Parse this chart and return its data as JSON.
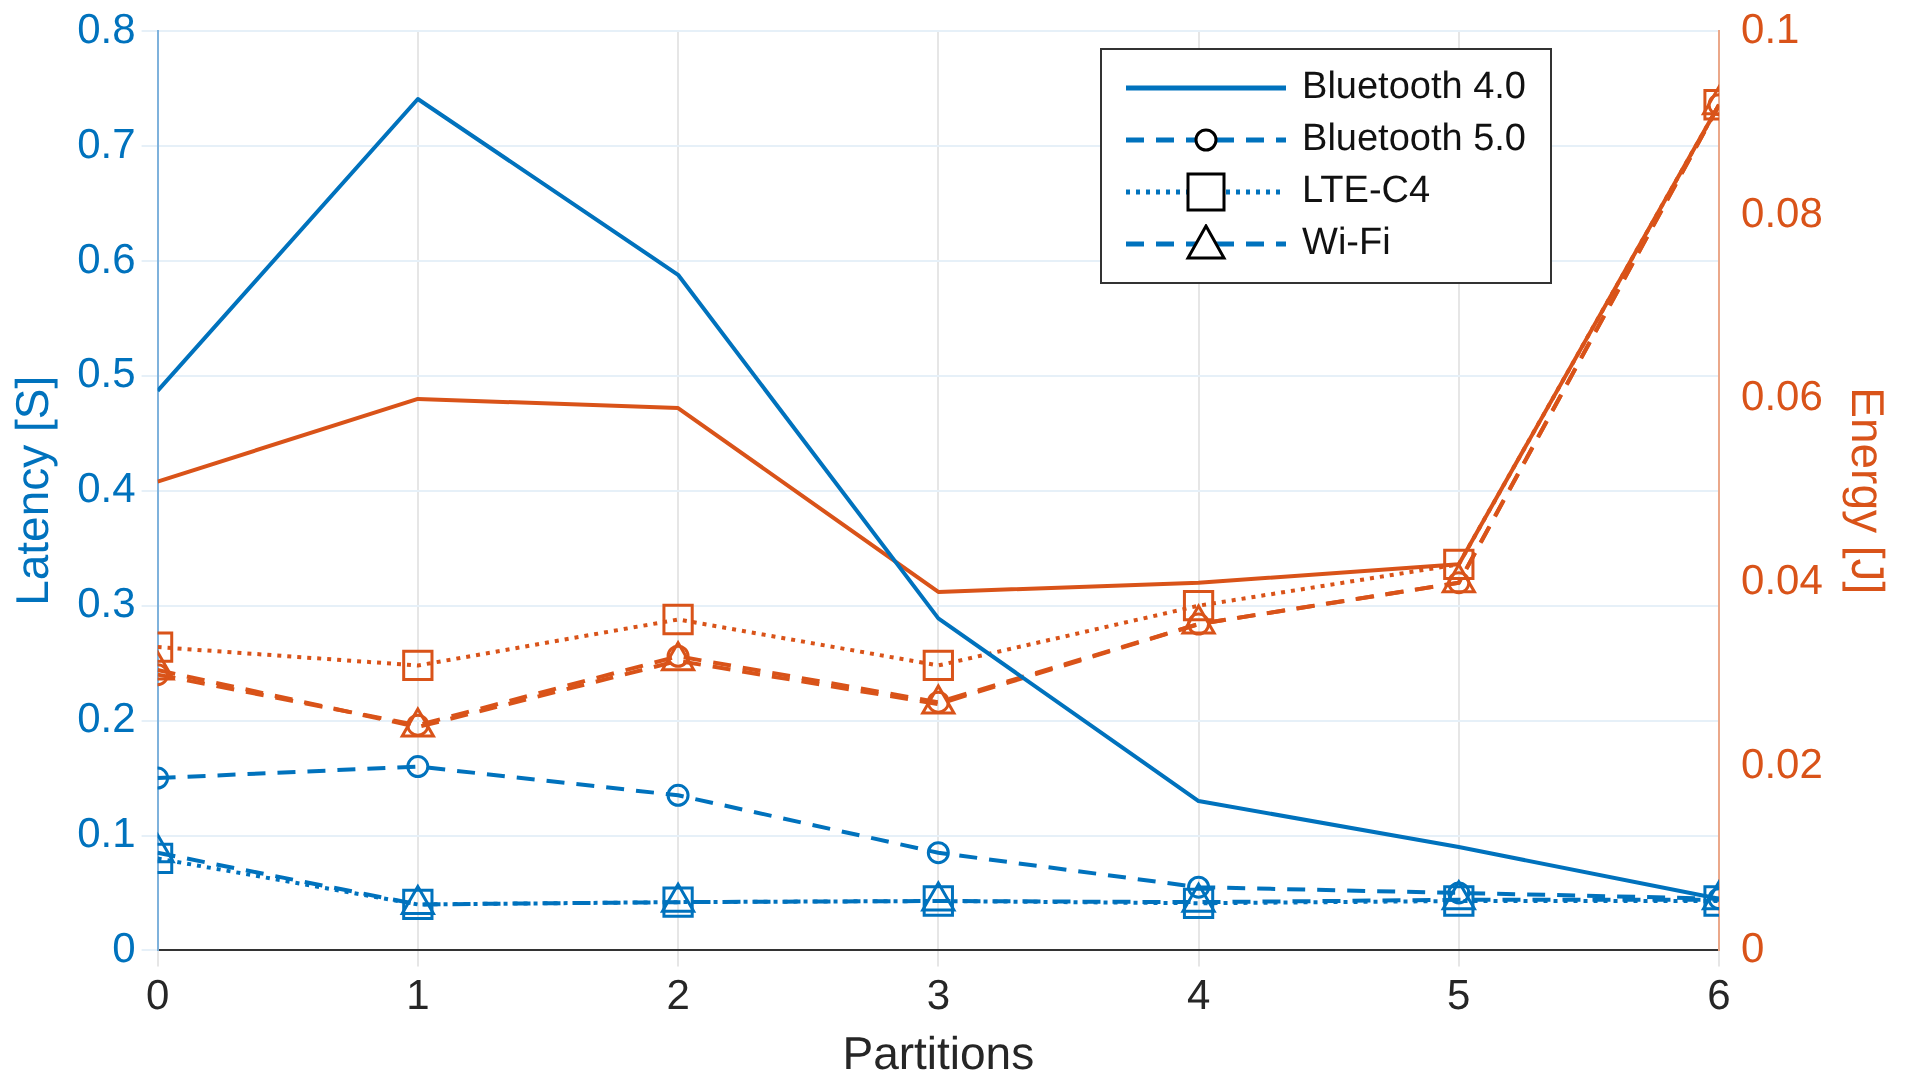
{
  "chart_data": {
    "type": "line",
    "xlabel": "Partitions",
    "ylabel": "Latency [S]",
    "y2label": "Energy [J]",
    "x": [
      0,
      1,
      2,
      3,
      4,
      5,
      6
    ],
    "xlim": [
      0,
      6
    ],
    "xticks": [
      0,
      1,
      2,
      3,
      4,
      5,
      6
    ],
    "ylim": [
      0,
      0.8
    ],
    "yticks": [
      0,
      0.1,
      0.2,
      0.3,
      0.4,
      0.5,
      0.6,
      0.7,
      0.8
    ],
    "y2lim": [
      0,
      0.1
    ],
    "y2ticks": [
      0,
      0.02,
      0.04,
      0.06,
      0.08,
      0.1
    ],
    "grid": true,
    "legend": "top right",
    "series": [
      {
        "name": "Bluetooth 4.0",
        "color": "#0072bd",
        "marker": "none",
        "line_style": "solid",
        "values": [
          0.487,
          0.741,
          0.588,
          0.289,
          0.13,
          0.09,
          0.045
        ]
      },
      {
        "name": "Bluetooth 5.0",
        "color": "#0072bd",
        "marker": "circle",
        "line_style": "dashed",
        "values": [
          0.15,
          0.16,
          0.135,
          0.085,
          0.055,
          0.05,
          0.045
        ]
      },
      {
        "name": "LTE-C4",
        "color": "#0072bd",
        "marker": "square",
        "line_style": "dotted",
        "values": [
          0.08,
          0.04,
          0.042,
          0.043,
          0.041,
          0.043,
          0.043
        ]
      },
      {
        "name": "Wi-Fi",
        "color": "#0072bd",
        "marker": "triangle",
        "line_style": "dashed",
        "values": [
          0.085,
          0.04,
          0.042,
          0.043,
          0.042,
          0.044,
          0.044
        ]
      },
      {
        "color": "#d95319",
        "axis": "y2",
        "marker": "none",
        "line_style": "solid",
        "values": [
          0.051,
          0.06,
          0.059,
          0.039,
          0.04,
          0.042,
          0.092
        ]
      },
      {
        "color": "#d95319",
        "axis": "y2",
        "marker": "circle",
        "line_style": "dashed",
        "values": [
          0.03,
          0.0245,
          0.032,
          0.027,
          0.0355,
          0.04,
          0.092
        ]
      },
      {
        "color": "#d95319",
        "axis": "y2",
        "marker": "square",
        "line_style": "dotted",
        "values": [
          0.033,
          0.031,
          0.036,
          0.031,
          0.0375,
          0.042,
          0.092
        ]
      },
      {
        "color": "#d95319",
        "axis": "y2",
        "marker": "triangle",
        "line_style": "dashed",
        "values": [
          0.0305,
          0.0243,
          0.0315,
          0.0268,
          0.0355,
          0.04,
          0.092
        ]
      }
    ]
  }
}
